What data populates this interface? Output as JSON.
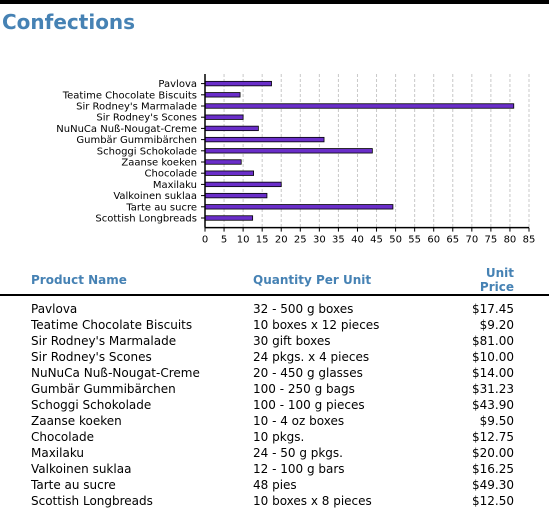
{
  "page": {
    "title": "Confections"
  },
  "chart_data": {
    "type": "bar",
    "orientation": "horizontal",
    "categories": [
      "Pavlova",
      "Teatime Chocolate Biscuits",
      "Sir Rodney's Marmalade",
      "Sir Rodney's Scones",
      "NuNuCa Nuß-Nougat-Creme",
      "Gumbär Gummibärchen",
      "Schoggi Schokolade",
      "Zaanse koeken",
      "Chocolade",
      "Maxilaku",
      "Valkoinen suklaa",
      "Tarte au sucre",
      "Scottish Longbreads"
    ],
    "values": [
      17.45,
      9.2,
      81,
      10,
      14,
      31.23,
      43.9,
      9.5,
      12.75,
      20,
      16.25,
      49.3,
      12.5
    ],
    "xlim": [
      0,
      85
    ],
    "xticks": [
      "0",
      "5",
      "10",
      "15",
      "20",
      "25",
      "30",
      "35",
      "40",
      "45",
      "50",
      "55",
      "60",
      "65",
      "70",
      "75",
      "80",
      "85"
    ],
    "grid": true,
    "colors": {
      "bar_fill": "#6a2ec9",
      "bar_stroke": "#000000",
      "grid": "#c8c8c8"
    }
  },
  "table": {
    "headers": {
      "name": "Product Name",
      "qty": "Quantity Per Unit",
      "price": "Unit Price"
    },
    "rows": [
      {
        "name": "Pavlova",
        "qty": "32 - 500 g boxes",
        "price": "$17.45"
      },
      {
        "name": "Teatime Chocolate Biscuits",
        "qty": "10 boxes x 12 pieces",
        "price": "$9.20"
      },
      {
        "name": "Sir Rodney's Marmalade",
        "qty": "30 gift boxes",
        "price": "$81.00"
      },
      {
        "name": "Sir Rodney's Scones",
        "qty": "24 pkgs. x 4 pieces",
        "price": "$10.00"
      },
      {
        "name": "NuNuCa Nuß-Nougat-Creme",
        "qty": "20 - 450 g glasses",
        "price": "$14.00"
      },
      {
        "name": "Gumbär Gummibärchen",
        "qty": "100 - 250 g bags",
        "price": "$31.23"
      },
      {
        "name": "Schoggi Schokolade",
        "qty": "100 - 100 g pieces",
        "price": "$43.90"
      },
      {
        "name": "Zaanse koeken",
        "qty": "10 - 4 oz boxes",
        "price": "$9.50"
      },
      {
        "name": "Chocolade",
        "qty": "10 pkgs.",
        "price": "$12.75"
      },
      {
        "name": "Maxilaku",
        "qty": "24 - 50 g pkgs.",
        "price": "$20.00"
      },
      {
        "name": "Valkoinen suklaa",
        "qty": "12 - 100 g bars",
        "price": "$16.25"
      },
      {
        "name": "Tarte au sucre",
        "qty": "48 pies",
        "price": "$49.30"
      },
      {
        "name": "Scottish Longbreads",
        "qty": "10 boxes x 8 pieces",
        "price": "$12.50"
      }
    ]
  }
}
